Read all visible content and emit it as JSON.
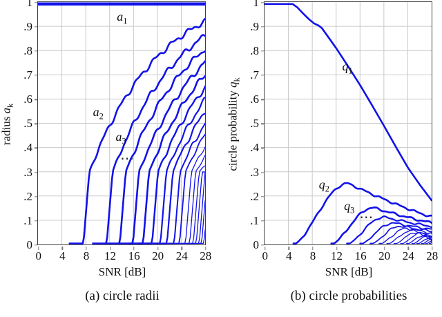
{
  "figure": {
    "background": "#ffffff",
    "text_color": "#111111"
  },
  "chart_data": [
    {
      "id": "a",
      "type": "line",
      "caption": "(a) circle radii",
      "xlabel": "SNR [dB]",
      "ylabel": {
        "text": "radius",
        "var": "a",
        "sub": "k"
      },
      "xlim": [
        0,
        28
      ],
      "ylim": [
        0,
        1
      ],
      "grid": true,
      "legend": "none",
      "line_color": "#1212e8",
      "grid_color": "#c9c9c9",
      "xticks": {
        "values": [
          0,
          4,
          8,
          12,
          16,
          20,
          24,
          28
        ],
        "labels": [
          "0",
          "4",
          "8",
          "12",
          "16",
          "20",
          "24",
          "28"
        ]
      },
      "yticks": {
        "values": [
          1,
          0.9,
          0.8,
          0.7,
          0.6,
          0.5,
          0.4,
          0.3,
          0.2,
          0.1,
          0
        ],
        "labels": [
          "1",
          ".9",
          ".8",
          ".7",
          ".6",
          ".5",
          ".4",
          ".3",
          ".2",
          ".1",
          "0"
        ]
      },
      "annotations": [
        {
          "base": "a",
          "sub": "1",
          "x": 14.1,
          "y": 0.935
        },
        {
          "base": "a",
          "sub": "2",
          "x": 10.1,
          "y": 0.542
        },
        {
          "base": "a",
          "sub": "3",
          "x": 13.9,
          "y": 0.44
        },
        {
          "base": "⋯",
          "sub": "",
          "x": 15.0,
          "y": 0.352
        }
      ],
      "series": [
        {
          "name": "a1",
          "model": "flat",
          "value": 1.0,
          "width": 4.5
        },
        {
          "name": "a2",
          "model": "rise",
          "start": 7.6,
          "end": 0.92,
          "width": 2.6
        },
        {
          "name": "a3",
          "model": "rise",
          "start": 11.5,
          "end": 0.862,
          "width": 2.6
        },
        {
          "name": "a4",
          "model": "rise",
          "start": 13.7,
          "end": 0.806,
          "width": 2.6
        },
        {
          "name": "a5",
          "model": "rise",
          "start": 15.9,
          "end": 0.752,
          "width": 2.6
        },
        {
          "name": "a6",
          "model": "rise",
          "start": 17.6,
          "end": 0.7,
          "width": 2.6
        },
        {
          "name": "a7",
          "model": "rise",
          "start": 19.1,
          "end": 0.648,
          "width": 2.4
        },
        {
          "name": "a8",
          "model": "rise",
          "start": 20.5,
          "end": 0.598,
          "width": 2.2
        },
        {
          "name": "a9",
          "model": "rise",
          "start": 21.6,
          "end": 0.55,
          "width": 2.2
        },
        {
          "name": "a10",
          "model": "rise",
          "start": 22.8,
          "end": 0.5,
          "width": 2.0
        },
        {
          "name": "a11",
          "model": "rise",
          "start": 23.7,
          "end": 0.455,
          "width": 1.8
        },
        {
          "name": "a12",
          "model": "rise",
          "start": 24.7,
          "end": 0.405,
          "width": 1.3
        },
        {
          "name": "a13",
          "model": "rise",
          "start": 25.4,
          "end": 0.36,
          "width": 1.3
        },
        {
          "name": "a14",
          "model": "rise",
          "start": 26.0,
          "end": 0.325,
          "width": 1.3
        },
        {
          "name": "a15",
          "model": "rise",
          "start": 26.5,
          "end": 0.29,
          "width": 1.3
        },
        {
          "name": "a16",
          "model": "rise",
          "start": 27.0,
          "end": 0.25,
          "width": 1.3
        },
        {
          "name": "a17",
          "model": "rise",
          "start": 27.4,
          "end": 0.21,
          "width": 1.3
        },
        {
          "name": "a18",
          "model": "rise",
          "start": 27.8,
          "end": 0.15,
          "width": 1.3
        }
      ]
    },
    {
      "id": "b",
      "type": "line",
      "caption": "(b) circle probabilities",
      "xlabel": "SNR [dB]",
      "ylabel": {
        "text": "circle probability",
        "var": "q",
        "sub": "k"
      },
      "xlim": [
        0,
        28
      ],
      "ylim": [
        0,
        1
      ],
      "grid": true,
      "legend": "none",
      "line_color": "#1212e8",
      "grid_color": "#c9c9c9",
      "xticks": {
        "values": [
          0,
          4,
          8,
          12,
          16,
          20,
          24,
          28
        ],
        "labels": [
          "0",
          "4",
          "8",
          "12",
          "16",
          "20",
          "24",
          "28"
        ]
      },
      "yticks": {
        "values": [
          1,
          0.9,
          0.8,
          0.7,
          0.6,
          0.5,
          0.4,
          0.3,
          0.2,
          0.1,
          0
        ],
        "labels": [
          "1",
          ".9",
          ".8",
          ".7",
          ".6",
          ".5",
          ".4",
          ".3",
          ".2",
          ".1",
          "0"
        ]
      },
      "annotations": [
        {
          "base": "q",
          "sub": "1",
          "x": 13.9,
          "y": 0.729
        },
        {
          "base": "q",
          "sub": "2",
          "x": 10.0,
          "y": 0.242
        },
        {
          "base": "q",
          "sub": "3",
          "x": 14.2,
          "y": 0.153
        },
        {
          "base": "⋯",
          "sub": "",
          "x": 17.1,
          "y": 0.112
        }
      ],
      "series": [
        {
          "name": "q1",
          "model": "points",
          "width": 2.6,
          "points": [
            [
              0,
              1
            ],
            [
              4.7,
              1
            ],
            [
              5.5,
              0.978
            ],
            [
              6.5,
              0.952
            ],
            [
              7.5,
              0.928
            ],
            [
              8.3,
              0.912
            ],
            [
              9.0,
              0.904
            ],
            [
              9.6,
              0.893
            ],
            [
              10.5,
              0.862
            ],
            [
              12,
              0.81
            ],
            [
              14,
              0.735
            ],
            [
              16,
              0.658
            ],
            [
              18,
              0.575
            ],
            [
              20,
              0.49
            ],
            [
              22,
              0.403
            ],
            [
              24,
              0.318
            ],
            [
              26,
              0.247
            ],
            [
              28,
              0.182
            ]
          ]
        },
        {
          "name": "q2",
          "model": "bump",
          "start": 4.85,
          "peak_x": 14.0,
          "peak_y": 0.252,
          "end": 0.115,
          "width": 2.6
        },
        {
          "name": "q3",
          "model": "bump",
          "start": 11.2,
          "peak_x": 18.2,
          "peak_y": 0.152,
          "end": 0.09,
          "width": 2.6
        },
        {
          "name": "q4",
          "model": "bump",
          "start": 13.8,
          "peak_x": 20.0,
          "peak_y": 0.113,
          "end": 0.075,
          "width": 2.2
        },
        {
          "name": "q5",
          "model": "bump",
          "start": 16.0,
          "peak_x": 21.6,
          "peak_y": 0.089,
          "end": 0.063,
          "width": 2.0
        },
        {
          "name": "q6",
          "model": "bump",
          "start": 17.7,
          "peak_x": 22.8,
          "peak_y": 0.076,
          "end": 0.055,
          "width": 1.7
        },
        {
          "name": "q7",
          "model": "bump",
          "start": 19.2,
          "peak_x": 23.8,
          "peak_y": 0.066,
          "end": 0.048,
          "width": 1.4
        },
        {
          "name": "q8",
          "model": "bump",
          "start": 20.5,
          "peak_x": 24.7,
          "peak_y": 0.058,
          "end": 0.042,
          "width": 1.3
        },
        {
          "name": "q9",
          "model": "bump",
          "start": 21.7,
          "peak_x": 25.5,
          "peak_y": 0.05,
          "end": 0.036,
          "width": 1.3
        },
        {
          "name": "q10",
          "model": "bump",
          "start": 22.8,
          "peak_x": 26.1,
          "peak_y": 0.044,
          "end": 0.031,
          "width": 1.3
        },
        {
          "name": "q11",
          "model": "bump",
          "start": 23.8,
          "peak_x": 26.7,
          "peak_y": 0.038,
          "end": 0.026,
          "width": 1.3
        },
        {
          "name": "q12",
          "model": "bump",
          "start": 24.7,
          "peak_x": 27.2,
          "peak_y": 0.032,
          "end": 0.022,
          "width": 1.3
        },
        {
          "name": "q13",
          "model": "bump",
          "start": 25.5,
          "peak_x": 27.6,
          "peak_y": 0.026,
          "end": 0.018,
          "width": 1.3
        },
        {
          "name": "q14",
          "model": "bump",
          "start": 26.3,
          "peak_x": 27.9,
          "peak_y": 0.02,
          "end": 0.014,
          "width": 1.3
        },
        {
          "name": "q15",
          "model": "bump",
          "start": 27.0,
          "peak_x": 28.0,
          "peak_y": 0.014,
          "end": 0.011,
          "width": 1.3
        },
        {
          "name": "q16",
          "model": "bump",
          "start": 27.6,
          "peak_x": 28.0,
          "peak_y": 0.008,
          "end": 0.006,
          "width": 1.3
        }
      ]
    }
  ]
}
